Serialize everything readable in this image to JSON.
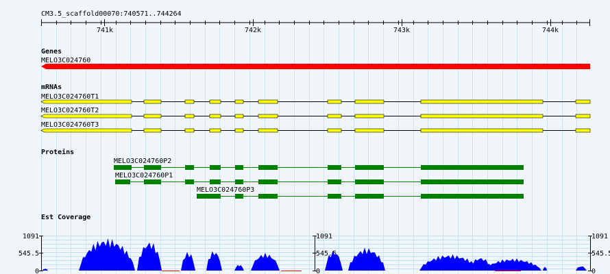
{
  "ruler": {
    "locus": "CM3.5_scaffold00070:740571..744264",
    "ticks": [
      "741k",
      "742k",
      "743k",
      "744k"
    ]
  },
  "tracks": {
    "genes": {
      "title": "Genes",
      "feature": {
        "name": "MELO3C024760",
        "color": "#ff0000",
        "strand": "minus"
      }
    },
    "mrnas": {
      "title": "mRNAs",
      "color": "#ffff00",
      "items": [
        {
          "name": "MELO3C024760T1"
        },
        {
          "name": "MELO3C024760T2"
        },
        {
          "name": "MELO3C024760T3"
        }
      ]
    },
    "proteins": {
      "title": "Proteins",
      "color": "#008000",
      "items": [
        {
          "name": "MELO3C024760P2"
        },
        {
          "name": "MELO3C024760P1"
        },
        {
          "name": "MELO3C024760P3"
        }
      ]
    },
    "est_coverage": {
      "title": "Est Coverage",
      "color": "#0000ff",
      "axis_labels": {
        "max": "1091",
        "mid": "545.5",
        "min": "0"
      }
    }
  }
}
